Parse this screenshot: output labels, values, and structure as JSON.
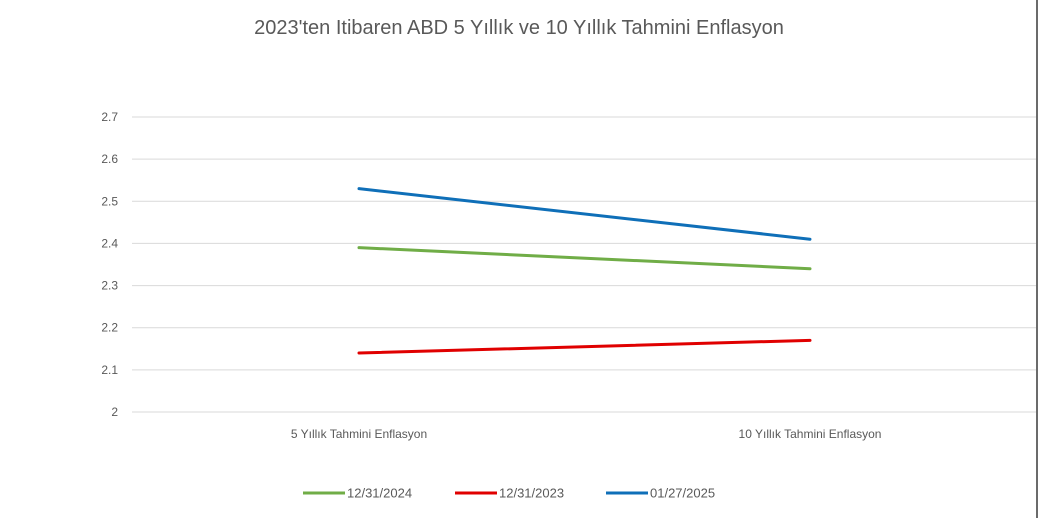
{
  "chart_data": {
    "type": "line",
    "title": "2023'ten Itibaren ABD 5 Yıllık ve 10 Yıllık Tahmini Enflasyon",
    "categories": [
      "5 Yıllık Tahmini Enflasyon",
      "10 Yıllık Tahmini Enflasyon"
    ],
    "ylim": [
      2,
      2.7
    ],
    "yticks": [
      "2",
      "2.1",
      "2.2",
      "2.3",
      "2.4",
      "2.5",
      "2.6",
      "2.7"
    ],
    "grid": true,
    "legend_position": "bottom",
    "series": [
      {
        "name": "12/31/2024",
        "values": [
          2.39,
          2.34
        ],
        "color": "#70ad47"
      },
      {
        "name": "12/31/2023",
        "values": [
          2.14,
          2.17
        ],
        "color": "#e00000"
      },
      {
        "name": "01/27/2025",
        "values": [
          2.53,
          2.41
        ],
        "color": "#0f6fb8"
      }
    ]
  }
}
